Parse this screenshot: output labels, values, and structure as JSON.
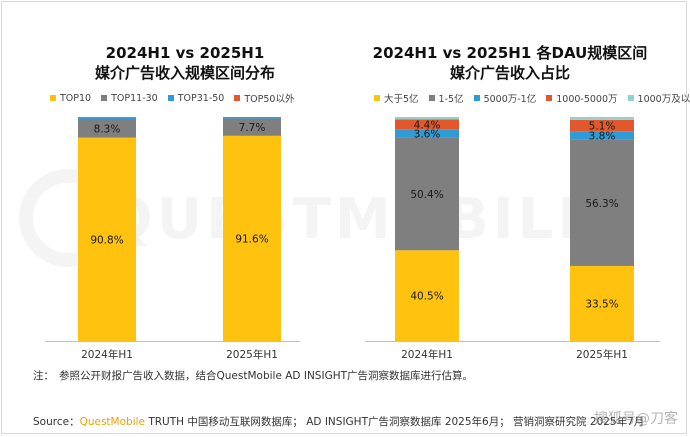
{
  "colors": {
    "top10": "#ffc20e",
    "top11_30": "#7f7f7f",
    "top31_50": "#2e9bd6",
    "top50_plus": "#e2572b",
    "gt_5yi": "#ffc20e",
    "r_1_5yi": "#7f7f7f",
    "r_5000w_1yi": "#2e9bd6",
    "r_1000_5000w": "#e2572b",
    "lt_1000w": "#8ed3cf",
    "brand": "#f0a200"
  },
  "watermark": {
    "text": "QUESTMOBILE"
  },
  "chart_data": [
    {
      "type": "bar",
      "stacked": true,
      "title_line1": "2024H1 vs 2025H1",
      "title_line2": "媒介广告收入规模区间分布",
      "categories": [
        "2024年H1",
        "2025年H1"
      ],
      "ylim": [
        0,
        100
      ],
      "legend_position": "top",
      "series": [
        {
          "name": "TOP10",
          "color_key": "top10",
          "values": [
            90.8,
            91.6
          ],
          "labels": [
            "90.8%",
            "91.6%"
          ]
        },
        {
          "name": "TOP11-30",
          "color_key": "top11_30",
          "values": [
            8.3,
            7.7
          ],
          "labels": [
            "8.3%",
            "7.7%"
          ]
        },
        {
          "name": "TOP31-50",
          "color_key": "top31_50",
          "values": [
            0.6,
            0.5
          ],
          "labels": [
            "",
            ""
          ]
        },
        {
          "name": "TOP50以外",
          "color_key": "top50_plus",
          "values": [
            0.3,
            0.2
          ],
          "labels": [
            "",
            ""
          ]
        }
      ]
    },
    {
      "type": "bar",
      "stacked": true,
      "title_line1": "2024H1 vs 2025H1 各DAU规模区间",
      "title_line2": "媒介广告收入占比",
      "categories": [
        "2024年H1",
        "2025年H1"
      ],
      "ylim": [
        0,
        100
      ],
      "legend_position": "top",
      "series": [
        {
          "name": "大于5亿",
          "color_key": "gt_5yi",
          "values": [
            40.5,
            33.5
          ],
          "labels": [
            "40.5%",
            "33.5%"
          ]
        },
        {
          "name": "1-5亿",
          "color_key": "r_1_5yi",
          "values": [
            50.4,
            56.3
          ],
          "labels": [
            "50.4%",
            "56.3%"
          ]
        },
        {
          "name": "5000万-1亿",
          "color_key": "r_5000w_1yi",
          "values": [
            3.6,
            3.8
          ],
          "labels": [
            "3.6%",
            "3.8%"
          ]
        },
        {
          "name": "1000-5000万",
          "color_key": "r_1000_5000w",
          "values": [
            4.4,
            5.1
          ],
          "labels": [
            "4.4%",
            "5.1%"
          ]
        },
        {
          "name": "1000万及以下",
          "color_key": "lt_1000w",
          "values": [
            1.1,
            1.3
          ],
          "labels": [
            "",
            ""
          ]
        }
      ]
    }
  ],
  "note": {
    "label": "注：",
    "text": "参照公开财报广告收入数据，结合QuestMobile AD INSIGHT广告洞察数据库进行估算。"
  },
  "source": {
    "prefix": "Source：",
    "brand": "QuestMobile",
    "text": " TRUTH 中国移动互联网数据库； AD INSIGHT广告洞察数据库 2025年6月；  营销洞察研究院 2025年7月"
  },
  "credit": "搜狐号@刀客"
}
